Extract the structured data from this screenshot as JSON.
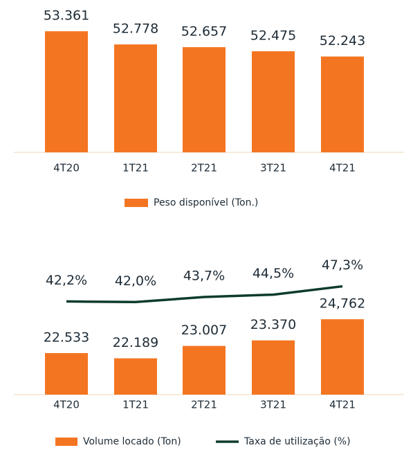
{
  "chart_data": [
    {
      "type": "bar",
      "categories": [
        "4T20",
        "1T21",
        "2T21",
        "3T21",
        "4T21"
      ],
      "series": [
        {
          "name": "Peso disponível (Ton.)",
          "color": "#f47521",
          "values": [
            53361,
            52778,
            52657,
            52475,
            52243
          ],
          "value_labels": [
            "53.361",
            "52.778",
            "52.657",
            "52.475",
            "52.243"
          ]
        }
      ],
      "ylim": [
        48000,
        54500
      ]
    },
    {
      "type": "combo",
      "categories": [
        "4T20",
        "1T21",
        "2T21",
        "3T21",
        "4T21"
      ],
      "series": [
        {
          "name": "Volume locado (Ton)",
          "type": "bar",
          "color": "#f47521",
          "values": [
            22533,
            22189,
            23007,
            23370,
            24762
          ],
          "value_labels": [
            "22.533",
            "22.189",
            "23.007",
            "23.370",
            "24,762"
          ]
        },
        {
          "name": "Taxa de utilização (%)",
          "type": "line",
          "axis": "y2",
          "color": "#0d3b2e",
          "values": [
            42.2,
            42.0,
            43.7,
            44.5,
            47.3
          ],
          "value_labels": [
            "42,2%",
            "42,0%",
            "43,7%",
            "44,5%",
            "47,3%"
          ]
        }
      ],
      "ylim": [
        19800,
        27000
      ],
      "y2lim": [
        36,
        50
      ]
    }
  ]
}
